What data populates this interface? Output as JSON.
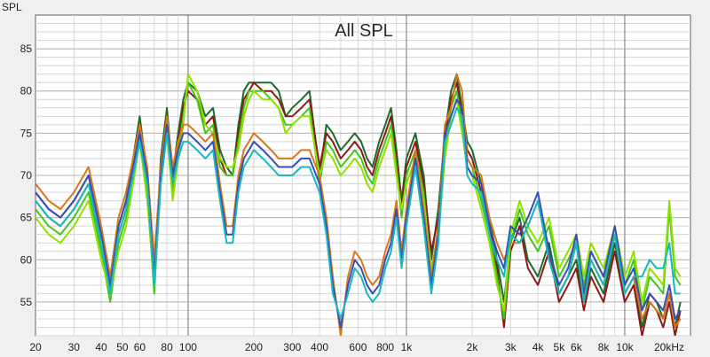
{
  "chart_data": {
    "type": "line",
    "title": "All SPL",
    "ylabel": "SPL",
    "x_scale": "log",
    "xlim": [
      20,
      20000
    ],
    "ylim": [
      51,
      89
    ],
    "x_ticks": [
      20,
      30,
      40,
      50,
      60,
      80,
      100,
      200,
      300,
      400,
      600,
      800,
      1000,
      2000,
      3000,
      4000,
      5000,
      6000,
      8000,
      10000,
      20000
    ],
    "x_tick_labels": [
      "20",
      "30",
      "40",
      "50",
      "60",
      "80",
      "100",
      "200",
      "300",
      "400",
      "600",
      "800",
      "1k",
      "2k",
      "3k",
      "4k",
      "5k",
      "6k",
      "8k",
      "10k",
      "20kHz"
    ],
    "y_ticks": [
      55,
      60,
      65,
      70,
      75,
      80,
      85
    ],
    "y_tick_labels": [
      "55",
      "60",
      "65",
      "70",
      "75",
      "80",
      "85"
    ],
    "grid": true,
    "legend": "none",
    "series": [
      {
        "color": "#1e6b2a",
        "x": [
          20,
          23,
          26,
          30,
          35,
          40,
          44,
          48,
          52,
          56,
          60,
          65,
          70,
          75,
          80,
          85,
          90,
          95,
          100,
          110,
          120,
          130,
          140,
          150,
          160,
          170,
          180,
          190,
          200,
          220,
          240,
          260,
          280,
          300,
          330,
          360,
          400,
          430,
          460,
          500,
          540,
          580,
          620,
          660,
          700,
          750,
          800,
          850,
          900,
          950,
          1000,
          1100,
          1200,
          1300,
          1400,
          1500,
          1600,
          1700,
          1800,
          1900,
          2000,
          2200,
          2400,
          2600,
          2800,
          3000,
          3300,
          3600,
          4000,
          4500,
          5000,
          5500,
          6000,
          6500,
          7000,
          8000,
          9000,
          10000,
          11000,
          12000,
          13000,
          14000,
          15000,
          16000,
          17000,
          18000
        ],
        "y": [
          68,
          66,
          65,
          67,
          70,
          63,
          56,
          64,
          67,
          72,
          77,
          70,
          57,
          72,
          78,
          70,
          75,
          79,
          81,
          80,
          77,
          78,
          73,
          71,
          70,
          76,
          80,
          81,
          81,
          81,
          81,
          80,
          77,
          78,
          79,
          80,
          70,
          76,
          75,
          73,
          74,
          75,
          74,
          72,
          71,
          74,
          76,
          78,
          73,
          67,
          72,
          75,
          70,
          60,
          66,
          75,
          80,
          82,
          78,
          74,
          73,
          69,
          65,
          60,
          55,
          62,
          65,
          60,
          58,
          62,
          56,
          58,
          60,
          55,
          59,
          56,
          62,
          56,
          58,
          52,
          56,
          55,
          53,
          56,
          52,
          55
        ]
      },
      {
        "color": "#8b1a1a",
        "x": [
          20,
          23,
          26,
          30,
          35,
          40,
          44,
          48,
          52,
          56,
          60,
          65,
          70,
          75,
          80,
          85,
          90,
          95,
          100,
          110,
          120,
          130,
          140,
          150,
          160,
          170,
          180,
          190,
          200,
          220,
          240,
          260,
          280,
          300,
          330,
          360,
          400,
          430,
          460,
          500,
          540,
          580,
          620,
          660,
          700,
          750,
          800,
          850,
          900,
          950,
          1000,
          1100,
          1200,
          1300,
          1400,
          1500,
          1600,
          1700,
          1800,
          1900,
          2000,
          2200,
          2400,
          2600,
          2800,
          3000,
          3300,
          3600,
          4000,
          4500,
          5000,
          5500,
          6000,
          6500,
          7000,
          8000,
          9000,
          10000,
          11000,
          12000,
          13000,
          14000,
          15000,
          16000,
          17000,
          18000
        ],
        "y": [
          67,
          65,
          64,
          66,
          69,
          62,
          57,
          63,
          66,
          71,
          76,
          69,
          58,
          71,
          77,
          69,
          74,
          78,
          80,
          79,
          76,
          77,
          72,
          70,
          70,
          75,
          79,
          80,
          81,
          80,
          80,
          79,
          77,
          77,
          78,
          79,
          71,
          75,
          74,
          72,
          73,
          74,
          73,
          71,
          70,
          73,
          75,
          77,
          72,
          66,
          71,
          74,
          69,
          61,
          65,
          74,
          79,
          81,
          77,
          73,
          72,
          68,
          64,
          59,
          52,
          61,
          64,
          59,
          57,
          61,
          55,
          57,
          59,
          54,
          58,
          55,
          61,
          55,
          57,
          51,
          55,
          54,
          52,
          55,
          51,
          54
        ]
      },
      {
        "color": "#44c61a",
        "x": [
          20,
          23,
          26,
          30,
          35,
          40,
          44,
          48,
          52,
          56,
          60,
          65,
          70,
          75,
          80,
          85,
          90,
          95,
          100,
          110,
          120,
          130,
          140,
          150,
          160,
          170,
          180,
          190,
          200,
          220,
          240,
          260,
          280,
          300,
          330,
          360,
          400,
          430,
          460,
          500,
          540,
          580,
          620,
          660,
          700,
          750,
          800,
          850,
          900,
          950,
          1000,
          1100,
          1200,
          1300,
          1400,
          1500,
          1600,
          1700,
          1800,
          1900,
          2000,
          2200,
          2400,
          2600,
          2800,
          3000,
          3300,
          3600,
          4000,
          4500,
          5000,
          5500,
          6000,
          6500,
          7000,
          8000,
          9000,
          10000,
          11000,
          12000,
          13000,
          14000,
          15000,
          16000,
          17000,
          18000
        ],
        "y": [
          66,
          64,
          63,
          65,
          68,
          61,
          55,
          62,
          65,
          70,
          75,
          68,
          56,
          70,
          76,
          68,
          73,
          77,
          81,
          79,
          75,
          76,
          71,
          70,
          70,
          74,
          78,
          80,
          80,
          80,
          79,
          78,
          76,
          76,
          77,
          78,
          69,
          74,
          73,
          71,
          72,
          73,
          72,
          70,
          69,
          72,
          74,
          76,
          71,
          65,
          70,
          73,
          68,
          58,
          64,
          73,
          78,
          80,
          76,
          72,
          71,
          67,
          63,
          58,
          53,
          62,
          66,
          63,
          61,
          64,
          58,
          60,
          62,
          57,
          61,
          58,
          63,
          57,
          60,
          54,
          58,
          57,
          56,
          66,
          58,
          57
        ]
      },
      {
        "color": "#90e000",
        "x": [
          20,
          23,
          26,
          30,
          35,
          40,
          44,
          48,
          52,
          56,
          60,
          65,
          70,
          75,
          80,
          85,
          90,
          95,
          100,
          110,
          120,
          130,
          140,
          150,
          160,
          170,
          180,
          190,
          200,
          220,
          240,
          260,
          280,
          300,
          330,
          360,
          400,
          430,
          460,
          500,
          540,
          580,
          620,
          660,
          700,
          750,
          800,
          850,
          900,
          950,
          1000,
          1100,
          1200,
          1300,
          1400,
          1500,
          1600,
          1700,
          1800,
          1900,
          2000,
          2200,
          2400,
          2600,
          2800,
          3000,
          3300,
          3600,
          4000,
          4500,
          5000,
          5500,
          6000,
          6500,
          7000,
          8000,
          9000,
          10000,
          11000,
          12000,
          13000,
          14000,
          15000,
          16000,
          17000,
          18000
        ],
        "y": [
          65,
          63,
          62,
          64,
          67,
          60,
          56,
          61,
          64,
          69,
          74,
          67,
          57,
          69,
          75,
          67,
          72,
          76,
          82,
          80,
          76,
          75,
          72,
          71,
          71,
          73,
          77,
          79,
          80,
          79,
          79,
          78,
          75,
          76,
          77,
          77,
          70,
          73,
          72,
          70,
          71,
          72,
          71,
          69,
          68,
          71,
          73,
          75,
          70,
          66,
          69,
          72,
          67,
          59,
          63,
          72,
          77,
          79,
          75,
          71,
          70,
          66,
          62,
          57,
          54,
          63,
          67,
          64,
          62,
          65,
          59,
          61,
          63,
          58,
          62,
          59,
          64,
          58,
          61,
          55,
          59,
          58,
          57,
          67,
          59,
          58
        ]
      },
      {
        "color": "#d8781a",
        "x": [
          20,
          23,
          26,
          30,
          35,
          40,
          44,
          48,
          52,
          56,
          60,
          65,
          70,
          75,
          80,
          85,
          90,
          95,
          100,
          110,
          120,
          130,
          140,
          150,
          160,
          170,
          180,
          190,
          200,
          220,
          240,
          260,
          280,
          300,
          330,
          360,
          400,
          430,
          460,
          500,
          540,
          580,
          620,
          660,
          700,
          750,
          800,
          850,
          900,
          950,
          1000,
          1100,
          1200,
          1300,
          1400,
          1500,
          1600,
          1700,
          1800,
          1900,
          2000,
          2200,
          2400,
          2600,
          2800,
          3000,
          3300,
          3600,
          4000,
          4500,
          5000,
          5500,
          6000,
          6500,
          7000,
          8000,
          9000,
          10000,
          11000,
          12000,
          13000,
          14000,
          15000,
          16000,
          17000,
          18000
        ],
        "y": [
          69,
          67,
          66,
          68,
          71,
          64,
          58,
          65,
          68,
          72,
          76,
          71,
          60,
          71,
          77,
          71,
          74,
          76,
          76,
          75,
          74,
          75,
          69,
          64,
          64,
          70,
          73,
          74,
          75,
          74,
          73,
          72,
          72,
          72,
          73,
          73,
          70,
          65,
          58,
          51,
          58,
          61,
          60,
          58,
          57,
          58,
          61,
          63,
          67,
          61,
          66,
          73,
          66,
          58,
          64,
          76,
          78,
          82,
          80,
          72,
          71,
          70,
          65,
          62,
          60,
          62,
          62,
          64,
          67,
          60,
          56,
          58,
          62,
          55,
          60,
          57,
          63,
          56,
          58,
          53,
          55,
          54,
          53,
          56,
          52,
          53
        ]
      },
      {
        "color": "#3a4cb8",
        "x": [
          20,
          23,
          26,
          30,
          35,
          40,
          44,
          48,
          52,
          56,
          60,
          65,
          70,
          75,
          80,
          85,
          90,
          95,
          100,
          110,
          120,
          130,
          140,
          150,
          160,
          170,
          180,
          190,
          200,
          220,
          240,
          260,
          280,
          300,
          330,
          360,
          400,
          430,
          460,
          500,
          540,
          580,
          620,
          660,
          700,
          750,
          800,
          850,
          900,
          950,
          1000,
          1100,
          1200,
          1300,
          1400,
          1500,
          1600,
          1700,
          1800,
          1900,
          2000,
          2200,
          2400,
          2600,
          2800,
          3000,
          3300,
          3600,
          4000,
          4500,
          5000,
          5500,
          6000,
          6500,
          7000,
          8000,
          9000,
          10000,
          11000,
          12000,
          13000,
          14000,
          15000,
          16000,
          17000,
          18000
        ],
        "y": [
          68,
          66,
          65,
          67,
          70,
          63,
          57,
          64,
          67,
          71,
          75,
          70,
          58,
          70,
          76,
          70,
          73,
          75,
          75,
          74,
          73,
          74,
          68,
          63,
          63,
          69,
          72,
          73,
          74,
          73,
          72,
          71,
          71,
          71,
          72,
          72,
          69,
          64,
          57,
          52,
          57,
          60,
          59,
          57,
          56,
          57,
          60,
          62,
          66,
          60,
          65,
          72,
          65,
          57,
          63,
          75,
          77,
          79,
          78,
          71,
          70,
          69,
          64,
          61,
          59,
          64,
          63,
          65,
          68,
          61,
          57,
          59,
          63,
          56,
          61,
          58,
          64,
          57,
          59,
          54,
          56,
          55,
          54,
          57,
          53,
          54
        ]
      },
      {
        "color": "#18b8c0",
        "x": [
          20,
          23,
          26,
          30,
          35,
          40,
          44,
          48,
          52,
          56,
          60,
          65,
          70,
          75,
          80,
          85,
          90,
          95,
          100,
          110,
          120,
          130,
          140,
          150,
          160,
          170,
          180,
          190,
          200,
          220,
          240,
          260,
          280,
          300,
          330,
          360,
          400,
          430,
          460,
          500,
          540,
          580,
          620,
          660,
          700,
          750,
          800,
          850,
          900,
          950,
          1000,
          1100,
          1200,
          1300,
          1400,
          1500,
          1600,
          1700,
          1800,
          1900,
          2000,
          2200,
          2400,
          2600,
          2800,
          3000,
          3300,
          3600,
          4000,
          4500,
          5000,
          5500,
          6000,
          6500,
          7000,
          8000,
          9000,
          10000,
          11000,
          12000,
          13000,
          14000,
          15000,
          16000,
          17000,
          18000
        ],
        "y": [
          67,
          65,
          64,
          66,
          69,
          62,
          56,
          63,
          66,
          70,
          74,
          69,
          57,
          69,
          75,
          69,
          72,
          74,
          74,
          73,
          72,
          73,
          67,
          62,
          62,
          68,
          71,
          72,
          73,
          72,
          71,
          70,
          70,
          70,
          71,
          71,
          68,
          63,
          56,
          53,
          56,
          59,
          58,
          56,
          55,
          56,
          59,
          61,
          65,
          59,
          64,
          71,
          64,
          56,
          62,
          74,
          76,
          78,
          77,
          70,
          69,
          68,
          63,
          60,
          58,
          63,
          62,
          64,
          67,
          60,
          56,
          58,
          62,
          55,
          60,
          57,
          63,
          56,
          58,
          58,
          60,
          59,
          59,
          62,
          56,
          56
        ]
      }
    ]
  }
}
